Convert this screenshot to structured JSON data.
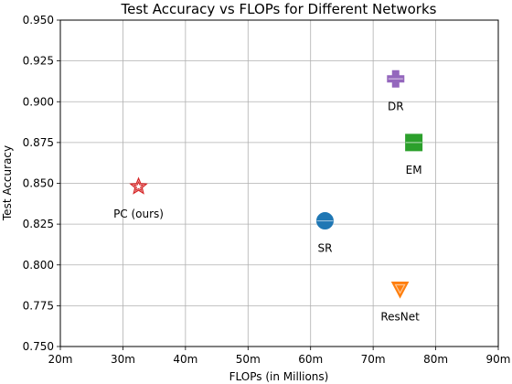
{
  "chart_data": {
    "type": "scatter",
    "title": "Test Accuracy vs FLOPs for Different Networks",
    "xlabel": "FLOPs (in Millions)",
    "ylabel": "Test Accuracy",
    "xlim": [
      20,
      90
    ],
    "ylim": [
      0.75,
      0.95
    ],
    "grid": true,
    "x_ticks": [
      20,
      30,
      40,
      50,
      60,
      70,
      80,
      90
    ],
    "x_tick_labels": [
      "20m",
      "30m",
      "40m",
      "50m",
      "60m",
      "70m",
      "80m",
      "90m"
    ],
    "y_ticks": [
      0.75,
      0.775,
      0.8,
      0.825,
      0.85,
      0.875,
      0.9,
      0.925,
      0.95
    ],
    "y_tick_labels": [
      "0.750",
      "0.775",
      "0.800",
      "0.825",
      "0.850",
      "0.875",
      "0.900",
      "0.925",
      "0.950"
    ],
    "points": [
      {
        "label": "PC (ours)",
        "x": 32.5,
        "y": 0.848,
        "marker": "star",
        "color": "#d62728"
      },
      {
        "label": "SR",
        "x": 62.3,
        "y": 0.827,
        "marker": "circle",
        "color": "#1f77b4"
      },
      {
        "label": "ResNet",
        "x": 74.3,
        "y": 0.785,
        "marker": "triangle-down",
        "color": "#ff7f0e"
      },
      {
        "label": "DR",
        "x": 73.6,
        "y": 0.914,
        "marker": "plus",
        "color": "#9467bd"
      },
      {
        "label": "EM",
        "x": 76.5,
        "y": 0.875,
        "marker": "square",
        "color": "#2ca02c"
      }
    ]
  }
}
